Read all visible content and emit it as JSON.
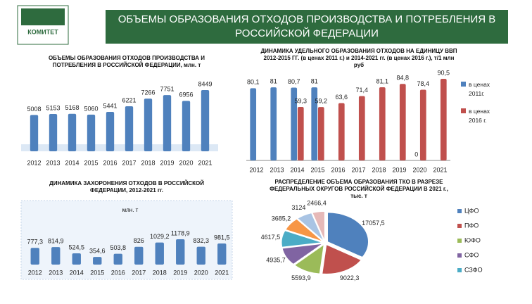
{
  "header": {
    "title": "ОБЪЕМЫ ОБРАЗОВАНИЯ ОТХОДОВ ПРОИЗВОДСТВА И ПОТРЕБЛЕНИЯ В РОССИЙСКОЙ ФЕДЕРАЦИИ",
    "logo": "КОМИТЕТ"
  },
  "chart_data": [
    {
      "type": "bar",
      "title": "ОБЪЕМЫ ОБРАЗОВАНИЯ ОТХОДОВ ПРОИЗВОДСТВА И ПОТРЕБЛЕНИЯ В РОССИЙСКОЙ ФЕДЕРАЦИИ, млн. т",
      "categories": [
        "2012",
        "2013",
        "2014",
        "2015",
        "2016",
        "2017",
        "2018",
        "2019",
        "2020",
        "2021"
      ],
      "values": [
        5008,
        5153,
        5168,
        5060,
        5441,
        6221,
        7266,
        7751,
        6956,
        8449
      ],
      "color": "#4f81bd"
    },
    {
      "type": "bar",
      "title": "ДИНАМИКА УДЕЛЬНОГО ОБРАЗОВАНИЯ ОТХОДОВ НА ЕДИНИЦУ ВВП 2012-2015 ГГ. (в ценах 2011 г.) и 2014-2021 гг. (в ценах 2016 г.), т/1 млн руб",
      "categories": [
        "2012",
        "2013",
        "2014",
        "2015",
        "2016",
        "2017",
        "2018",
        "2019",
        "2020",
        "2021"
      ],
      "series": [
        {
          "name": "в ценах 2011г.",
          "color": "#4f81bd",
          "values": [
            80.1,
            81,
            80.7,
            81,
            null,
            null,
            null,
            null,
            0,
            null
          ],
          "value_labels": [
            "80,1",
            "81",
            "80,7",
            "81",
            null,
            null,
            null,
            null,
            "0",
            null
          ]
        },
        {
          "name": "в ценах 2016 г.",
          "color": "#c0504d",
          "values": [
            null,
            null,
            59.3,
            59.2,
            63.6,
            71.4,
            81.1,
            84.8,
            78.4,
            90.5
          ],
          "value_labels": [
            null,
            null,
            "59,3",
            "59,2",
            "63,6",
            "71,4",
            "81,1",
            "84,8",
            "78,4",
            "90,5"
          ]
        }
      ]
    },
    {
      "type": "bar",
      "title": "ДИНАМИКА ЗАХОРОНЕНИЯ ОТХОДОВ В РОССИЙСКОЙ ФЕДЕРАЦИИ, 2012-2021 гг.",
      "subtitle": "млн. т",
      "categories": [
        "2012",
        "2013",
        "2014",
        "2015",
        "2016",
        "2017",
        "2018",
        "2019",
        "2020",
        "2021"
      ],
      "values": [
        777.3,
        814.9,
        524.5,
        354.6,
        503.8,
        826,
        1029.2,
        1178.9,
        832.3,
        981.5
      ],
      "value_labels": [
        "777,3",
        "814,9",
        "524,5",
        "354,6",
        "503,8",
        "826",
        "1029,2",
        "1178,9",
        "832,3",
        "981,5"
      ],
      "color": "#4f81bd"
    },
    {
      "type": "pie",
      "title": "РАСПРЕДЕЛЕНИЕ ОБЪЕМА ОБРАЗОВАНИЯ ТКО В РАЗРЕЗЕ ФЕДЕРАЛЬНЫХ ОКРУГОВ РОССИЙСКОЙ ФЕДЕРАЦИИ В 2021 г., тыс. т",
      "categories": [
        "ЦФО",
        "ПФО",
        "ЮФО",
        "СФО",
        "СЗФО",
        null,
        null,
        null
      ],
      "values": [
        17057.5,
        9022.3,
        5593.9,
        4935.7,
        4617.5,
        3685.2,
        3124,
        2466.4
      ],
      "value_labels": [
        "17057,5",
        "9022,3",
        "5593,9",
        "4935,7",
        "4617,5",
        "3685,2",
        "3124",
        "2466,4"
      ],
      "colors": [
        "#4f81bd",
        "#c0504d",
        "#9bbb59",
        "#8064a2",
        "#4bacc6",
        "#f79646",
        "#a9c4e4",
        "#e6b9b8"
      ]
    }
  ]
}
